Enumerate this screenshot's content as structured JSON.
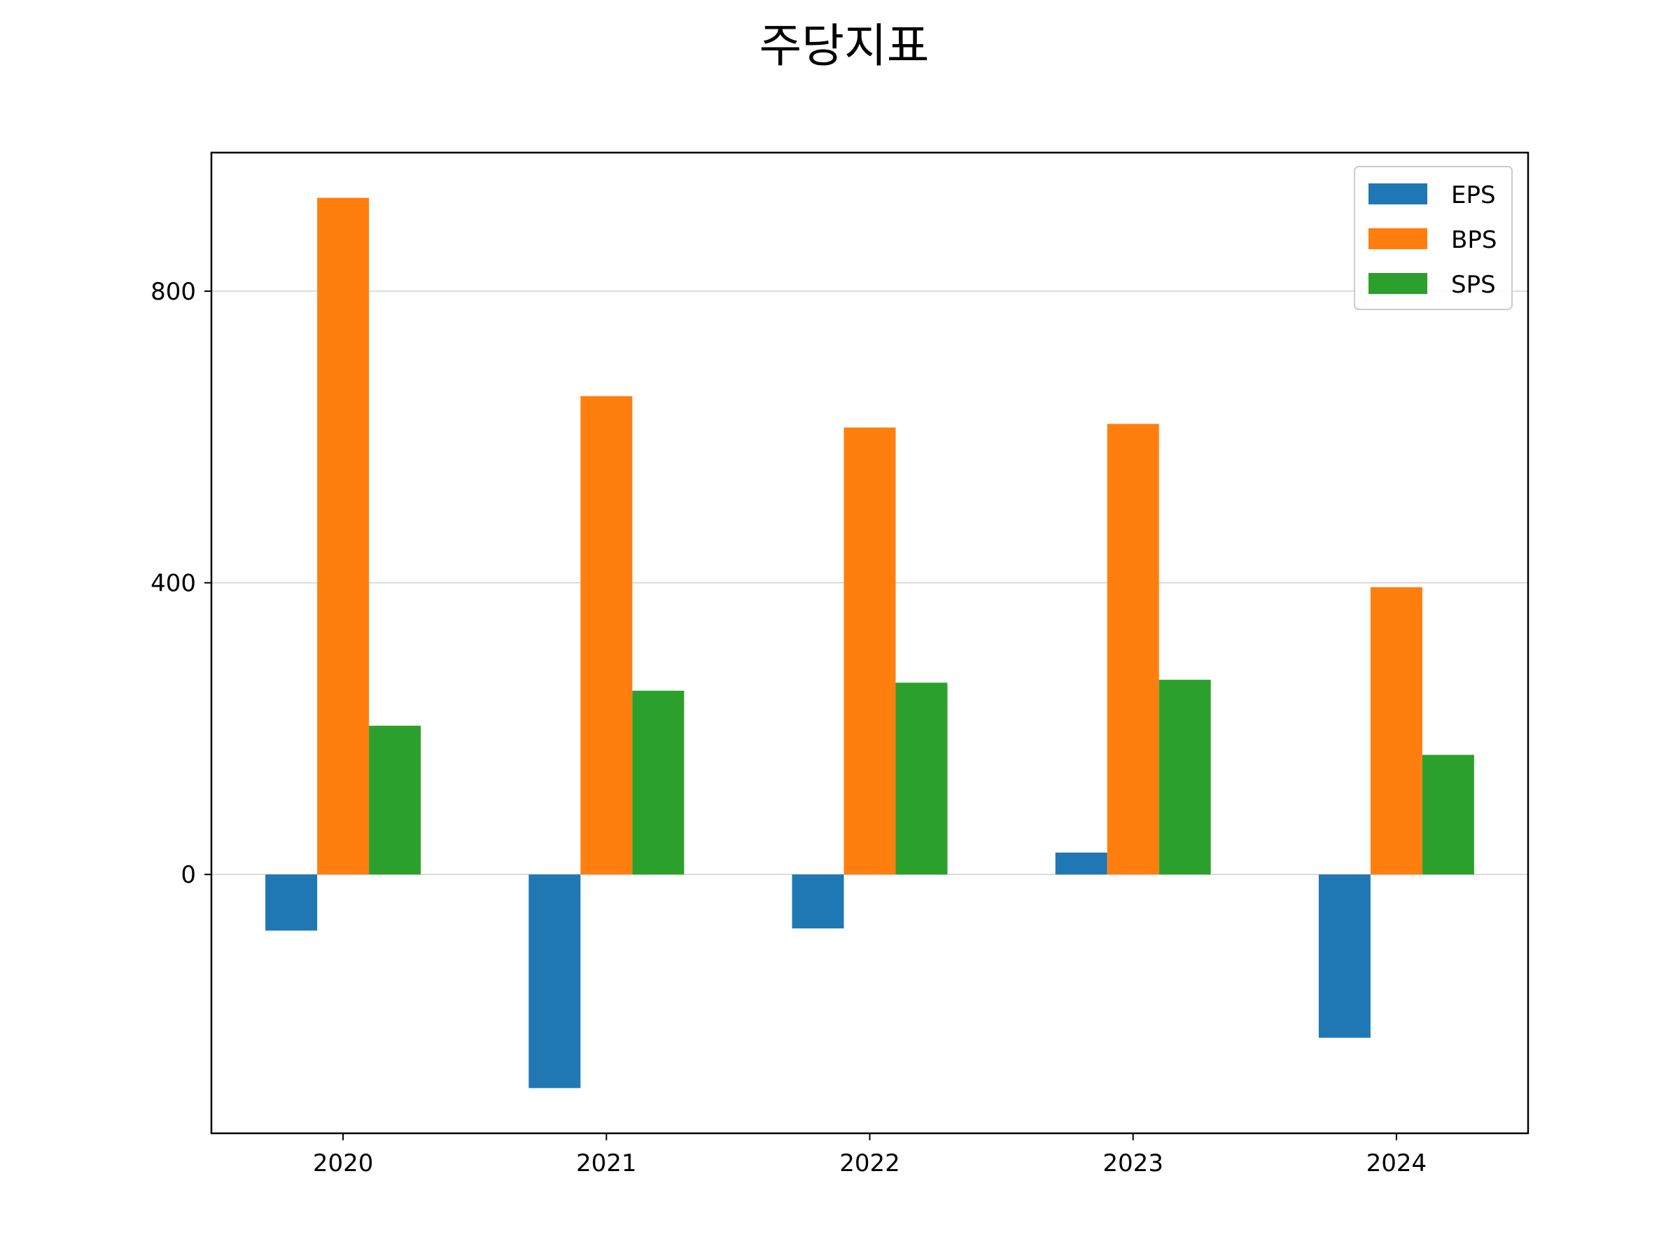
{
  "chart_data": {
    "type": "bar",
    "title": "주당지표",
    "xlabel": "",
    "ylabel": "",
    "categories": [
      "2020",
      "2021",
      "2022",
      "2023",
      "2024"
    ],
    "series": [
      {
        "name": "EPS",
        "color": "#1f77b4",
        "values": [
          -77,
          -293,
          -74,
          30,
          -224
        ]
      },
      {
        "name": "BPS",
        "color": "#ff7f0e",
        "values": [
          928,
          656,
          613,
          618,
          394
        ]
      },
      {
        "name": "SPS",
        "color": "#2ca02c",
        "values": [
          204,
          252,
          263,
          267,
          164
        ]
      }
    ],
    "yticks": [
      0,
      400,
      800
    ],
    "ylim": [
      -355,
      990
    ],
    "grid": "y",
    "legend_position": "top-right"
  }
}
